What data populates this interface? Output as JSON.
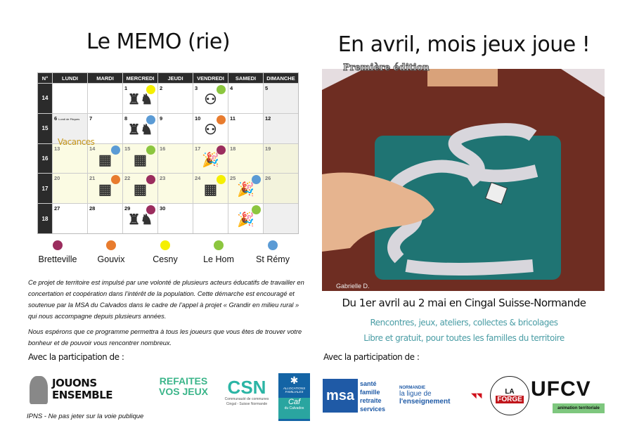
{
  "left": {
    "title": "Le MEMO (rie)",
    "vacances_label": "Vacances",
    "calendar": {
      "headers": [
        "N°",
        "LUNDI",
        "MARDI",
        "MERCREDI",
        "JEUDI",
        "VENDREDI",
        "SAMEDI",
        "DIMANCHE"
      ],
      "weeks": [
        {
          "num": "14",
          "days": [
            {
              "d": ""
            },
            {
              "d": ""
            },
            {
              "d": "1",
              "dot": "cesny",
              "icon": "chess"
            },
            {
              "d": "2"
            },
            {
              "d": "3",
              "dot": "lehom",
              "icon": "adult-child"
            },
            {
              "d": "4"
            },
            {
              "d": "5",
              "we": true
            }
          ]
        },
        {
          "num": "15",
          "days": [
            {
              "d": "6",
              "note": "Lundi de Pâques",
              "we": true
            },
            {
              "d": "7"
            },
            {
              "d": "8",
              "dot": "strem",
              "icon": "chess"
            },
            {
              "d": "9"
            },
            {
              "d": "10",
              "dot": "gouvix",
              "icon": "adult-child"
            },
            {
              "d": "11"
            },
            {
              "d": "12",
              "we": true
            }
          ]
        },
        {
          "num": "16",
          "hol": true,
          "days": [
            {
              "d": "13"
            },
            {
              "d": "14",
              "dot": "strem",
              "icon": "board-game"
            },
            {
              "d": "15",
              "dot": "lehom",
              "icon": "board-game"
            },
            {
              "d": "16"
            },
            {
              "d": "17",
              "dot": "bretteville",
              "icon": "party-popper"
            },
            {
              "d": "18"
            },
            {
              "d": "19",
              "we": true
            }
          ]
        },
        {
          "num": "17",
          "hol": true,
          "days": [
            {
              "d": "20"
            },
            {
              "d": "21",
              "dot": "gouvix",
              "icon": "board-game"
            },
            {
              "d": "22",
              "dot": "bretteville",
              "icon": "board-game"
            },
            {
              "d": "23"
            },
            {
              "d": "24",
              "dot": "cesny",
              "icon": "board-game"
            },
            {
              "d": "25",
              "dot": "strem",
              "icon": "party-popper"
            },
            {
              "d": "26",
              "we": true
            }
          ]
        },
        {
          "num": "18",
          "days": [
            {
              "d": "27"
            },
            {
              "d": "28"
            },
            {
              "d": "29",
              "dot": "bretteville",
              "icon": "chess"
            },
            {
              "d": "30"
            },
            {
              "d": ""
            },
            {
              "d": "",
              "dot": "lehom",
              "icon": "party-popper"
            },
            {
              "d": "",
              "we": true
            }
          ]
        }
      ]
    },
    "legend": [
      {
        "key": "bretteville",
        "label": "Bretteville",
        "color": "#9b2d5e"
      },
      {
        "key": "gouvix",
        "label": "Gouvix",
        "color": "#e87c2e"
      },
      {
        "key": "cesny",
        "label": "Cesny",
        "color": "#f5ef00"
      },
      {
        "key": "lehom",
        "label": "Le Hom",
        "color": "#8cc63f"
      },
      {
        "key": "strem",
        "label": "St Rémy",
        "color": "#5b9bd5"
      }
    ],
    "intro": [
      "Ce projet de territoire est impulsé par une volonté de plusieurs acteurs éducatifs de travailler en concertation et coopération dans l’intérêt de la population. Cette démarche est encouragé et soutenue par la MSA du Calvados dans le cadre de l’appel à projet « Grandir en milieu rural » qui nous accompagne depuis plusieurs années.",
      "Nous espérons que ce programme  permettra à tous les joueurs que vous êtes de trouver votre bonheur et de pouvoir vous rencontrer nombreux."
    ],
    "participation": "Avec la participation de :",
    "logos": {
      "jouons": "JOUONS ENSEMBLE",
      "refaites": "REFAITES VOS JEUX",
      "csn_name": "CSN",
      "csn_sub": "Communauté de communes Cingal - Suisse Normande",
      "caf_top": "ALLOCATIONS FAMILIALES",
      "caf": "Caf",
      "caf_sub": "du Calvados"
    },
    "ipns": "IPNS - Ne pas jeter sur la voie publique"
  },
  "right": {
    "title": "En avril, mois jeux joue !",
    "edition": "Première édition",
    "artist": "Gabrielle D.",
    "dates": "Du 1er avril au 2 mai en Cingal Suisse-Normande",
    "tagline1": "Rencontres, jeux, ateliers,  collectes & bricolages",
    "tagline2": "Libre et gratuit, pour toutes les familles du territoire",
    "participation": "Avec la participation de :",
    "logos": {
      "msa": "msa",
      "msa_lines": [
        "santé",
        "famille",
        "retraite",
        "services"
      ],
      "ligue_region": "NORMANDIE",
      "ligue1": "la ligue de",
      "ligue2": "l'enseignement",
      "forge1": "LA",
      "forge2": "FORGE",
      "ufcv": "UFCV",
      "ufcv_sub": "animation territoriale"
    }
  }
}
